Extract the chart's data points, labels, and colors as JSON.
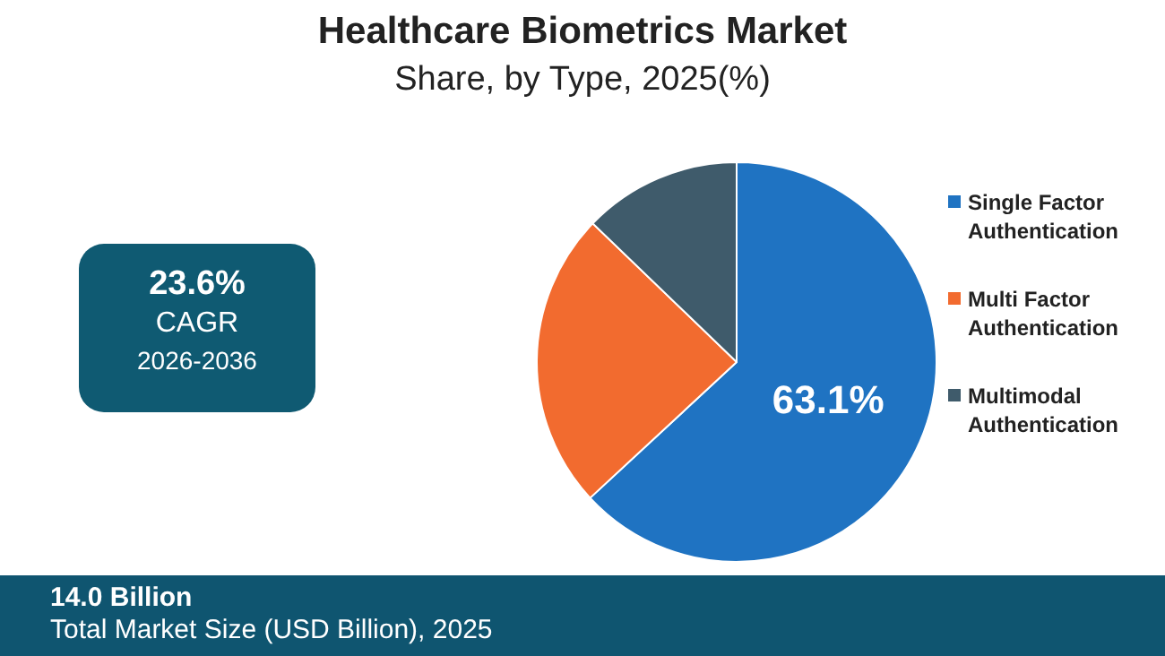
{
  "chart_data": {
    "type": "pie",
    "title": "Healthcare Biometrics Market",
    "subtitle": "Share, by Type, 2025(%)",
    "categories": [
      "Single Factor Authentication",
      "Multi Factor Authentication",
      "Multimodal Authentication"
    ],
    "values": [
      63.1,
      24.1,
      12.8
    ],
    "colors": [
      "#1f73c2",
      "#f26b2f",
      "#3f5b6b"
    ],
    "value_labels": [
      "63.1%",
      null,
      null
    ],
    "legend": "right",
    "annotations": [
      "23.6%",
      "CAGR",
      "2026-2036",
      "14.0 Billion",
      "Total Market Size (USD Billion), 2025"
    ]
  }
}
